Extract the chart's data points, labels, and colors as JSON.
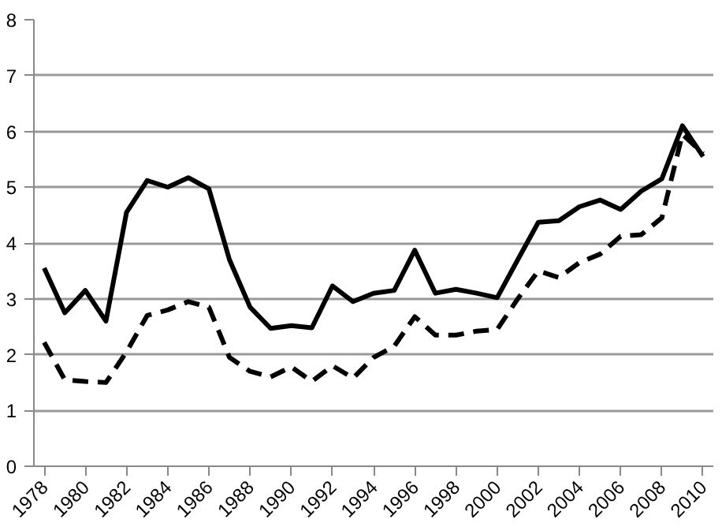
{
  "chart_data": {
    "type": "line",
    "categories": [
      "1978",
      null,
      "1980",
      null,
      "1982",
      null,
      "1984",
      null,
      "1986",
      null,
      "1988",
      null,
      "1990",
      null,
      "1992",
      null,
      "1994",
      null,
      "1996",
      null,
      "1998",
      null,
      "2000",
      null,
      "2002",
      null,
      "2004",
      null,
      "2006",
      null,
      "2008",
      null,
      "2010"
    ],
    "series": [
      {
        "color": "#000000",
        "line_style": "solid",
        "values": [
          3.55,
          2.75,
          3.15,
          2.6,
          4.55,
          5.12,
          5.0,
          5.17,
          4.97,
          3.7,
          2.85,
          2.47,
          2.52,
          2.48,
          3.23,
          2.95,
          3.1,
          3.15,
          3.87,
          3.1,
          3.17,
          3.1,
          3.02,
          3.7,
          4.37,
          4.4,
          4.65,
          4.77,
          4.6,
          4.93,
          5.15,
          6.1,
          5.55
        ]
      },
      {
        "color": "#000000",
        "line_style": "dashed",
        "values": [
          2.22,
          1.55,
          1.52,
          1.5,
          2.05,
          2.7,
          2.8,
          2.95,
          2.85,
          1.95,
          1.7,
          1.6,
          1.78,
          1.52,
          1.8,
          1.58,
          1.95,
          2.15,
          2.68,
          2.35,
          2.35,
          2.42,
          2.45,
          3.0,
          3.5,
          3.38,
          3.65,
          3.8,
          4.12,
          4.15,
          4.45,
          5.95,
          5.6
        ]
      }
    ],
    "ylim": [
      0,
      8
    ],
    "yticks": [
      0,
      1,
      2,
      3,
      4,
      5,
      6,
      7,
      8
    ],
    "grid": "y"
  }
}
